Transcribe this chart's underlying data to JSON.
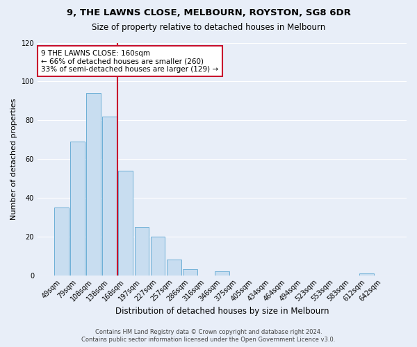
{
  "title1": "9, THE LAWNS CLOSE, MELBOURN, ROYSTON, SG8 6DR",
  "title2": "Size of property relative to detached houses in Melbourn",
  "xlabel": "Distribution of detached houses by size in Melbourn",
  "ylabel": "Number of detached properties",
  "footer1": "Contains HM Land Registry data © Crown copyright and database right 2024.",
  "footer2": "Contains public sector information licensed under the Open Government Licence v3.0.",
  "bar_labels": [
    "49sqm",
    "79sqm",
    "108sqm",
    "138sqm",
    "168sqm",
    "197sqm",
    "227sqm",
    "257sqm",
    "286sqm",
    "316sqm",
    "346sqm",
    "375sqm",
    "405sqm",
    "434sqm",
    "464sqm",
    "494sqm",
    "523sqm",
    "553sqm",
    "583sqm",
    "612sqm",
    "642sqm"
  ],
  "bar_values": [
    35,
    69,
    94,
    82,
    54,
    25,
    20,
    8,
    3,
    0,
    2,
    0,
    0,
    0,
    0,
    0,
    0,
    0,
    0,
    1,
    0
  ],
  "bar_color": "#c8ddf0",
  "bar_edge_color": "#6baed6",
  "vline_position": 3.5,
  "vline_color": "#c8102e",
  "annotation_title": "9 THE LAWNS CLOSE: 160sqm",
  "annotation_line1": "← 66% of detached houses are smaller (260)",
  "annotation_line2": "33% of semi-detached houses are larger (129) →",
  "annotation_box_color": "#ffffff",
  "annotation_box_edge": "#c8102e",
  "ylim": [
    0,
    120
  ],
  "yticks": [
    0,
    20,
    40,
    60,
    80,
    100,
    120
  ],
  "background_color": "#e8eef8",
  "grid_color": "#ffffff",
  "title1_fontsize": 9.5,
  "title2_fontsize": 8.5,
  "ylabel_fontsize": 8,
  "xlabel_fontsize": 8.5,
  "tick_fontsize": 7,
  "footer_fontsize": 6,
  "ann_fontsize": 7.5
}
